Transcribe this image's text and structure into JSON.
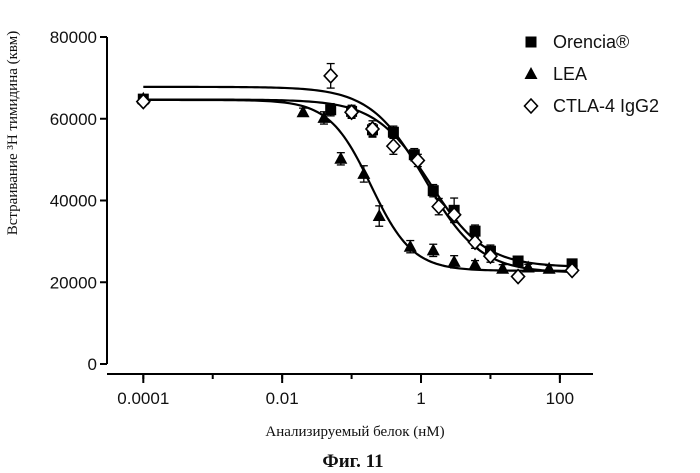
{
  "chart_data": {
    "type": "scatter",
    "x_scale": "log",
    "xlim": [
      3e-05,
      300
    ],
    "ylim": [
      0,
      80000
    ],
    "y_ticks": [
      0,
      20000,
      40000,
      60000,
      80000
    ],
    "y_tick_labels": [
      "0",
      "20000",
      "40000",
      "60000",
      "80000"
    ],
    "x_ticks": [
      0.0001,
      0.01,
      1,
      100
    ],
    "x_tick_labels": [
      "0.0001",
      "0.01",
      "1",
      "100"
    ],
    "xlabel": "Анализируемый белок (нМ)",
    "ylabel": "Встраивание ³H тимидина (квм)",
    "legend_position": "top-right",
    "series": [
      {
        "name": "Orencia®",
        "marker": "square",
        "color": "#000000",
        "points": [
          {
            "x": 0.0001,
            "y": 64800,
            "err": 800
          },
          {
            "x": 0.05,
            "y": 62200,
            "err": 1500
          },
          {
            "x": 0.1,
            "y": 61800,
            "err": 1500
          },
          {
            "x": 0.2,
            "y": 57300,
            "err": 1500
          },
          {
            "x": 0.4,
            "y": 56700,
            "err": 1500
          },
          {
            "x": 0.8,
            "y": 51200,
            "err": 1500
          },
          {
            "x": 1.5,
            "y": 42400,
            "err": 1500
          },
          {
            "x": 3,
            "y": 37600,
            "err": 3000
          },
          {
            "x": 6,
            "y": 32500,
            "err": 1500
          },
          {
            "x": 10,
            "y": 27600,
            "err": 1500
          },
          {
            "x": 25,
            "y": 25200,
            "err": 800
          },
          {
            "x": 150,
            "y": 24500,
            "err": 800
          }
        ],
        "fit": {
          "bottom": 23700,
          "top": 64700,
          "ec50": 1.35,
          "hill": 1.1
        }
      },
      {
        "name": "LEA",
        "marker": "triangle",
        "color": "#000000",
        "points": [
          {
            "x": 0.0001,
            "y": 64900,
            "err": 800
          },
          {
            "x": 0.02,
            "y": 61600,
            "err": 1000
          },
          {
            "x": 0.04,
            "y": 60200,
            "err": 1500
          },
          {
            "x": 0.07,
            "y": 50200,
            "err": 1500
          },
          {
            "x": 0.15,
            "y": 46500,
            "err": 2000
          },
          {
            "x": 0.25,
            "y": 36200,
            "err": 2500
          },
          {
            "x": 0.7,
            "y": 28700,
            "err": 1500
          },
          {
            "x": 1.5,
            "y": 27800,
            "err": 1500
          },
          {
            "x": 3,
            "y": 25000,
            "err": 1500
          },
          {
            "x": 6,
            "y": 24300,
            "err": 1000
          },
          {
            "x": 15,
            "y": 23300,
            "err": 1000
          },
          {
            "x": 35,
            "y": 23600,
            "err": 800
          },
          {
            "x": 70,
            "y": 23300,
            "err": 800
          }
        ],
        "fit": {
          "bottom": 22800,
          "top": 64600,
          "ec50": 0.19,
          "hill": 1.45
        }
      },
      {
        "name": "CTLA-4 IgG2",
        "marker": "diamond",
        "color": "#000000",
        "points": [
          {
            "x": 0.0001,
            "y": 64200,
            "err": 800
          },
          {
            "x": 0.05,
            "y": 70500,
            "err": 3000
          },
          {
            "x": 0.1,
            "y": 61600,
            "err": 1500
          },
          {
            "x": 0.2,
            "y": 57500,
            "err": 2000
          },
          {
            "x": 0.4,
            "y": 53300,
            "err": 2000
          },
          {
            "x": 0.9,
            "y": 49800,
            "err": 1500
          },
          {
            "x": 1.8,
            "y": 38500,
            "err": 2000
          },
          {
            "x": 3,
            "y": 36500,
            "err": 1500
          },
          {
            "x": 6,
            "y": 29800,
            "err": 1500
          },
          {
            "x": 10,
            "y": 26400,
            "err": 1500
          },
          {
            "x": 25,
            "y": 21400,
            "err": 800
          },
          {
            "x": 150,
            "y": 22900,
            "err": 800
          }
        ],
        "fit": {
          "bottom": 22300,
          "top": 67800,
          "ec50": 1.15,
          "hill": 1.1
        }
      }
    ]
  },
  "caption": "Фиг. 11"
}
